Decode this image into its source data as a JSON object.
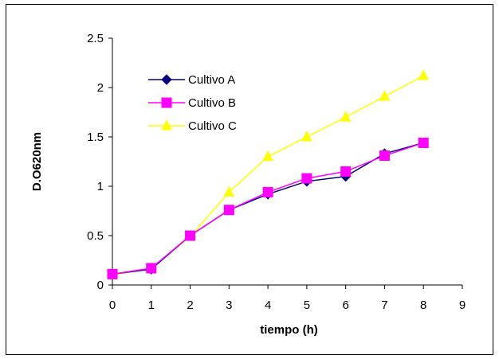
{
  "chart_data": {
    "type": "line",
    "title": "",
    "xlabel": "tiempo (h)",
    "ylabel": "D.O620nm",
    "xlim": [
      0,
      9
    ],
    "ylim": [
      0,
      2.5
    ],
    "x_ticks": [
      "0",
      "1",
      "2",
      "3",
      "4",
      "5",
      "6",
      "7",
      "8",
      "9"
    ],
    "y_ticks": [
      "0",
      "0.5",
      "1",
      "1.5",
      "2",
      "2.5"
    ],
    "grid": false,
    "legend_position": "top-left",
    "x": [
      0,
      1,
      2,
      3,
      4,
      5,
      6,
      7,
      8
    ],
    "series": [
      {
        "name": "Cultivo A",
        "color": "#000080",
        "marker": "diamond",
        "values": [
          0.11,
          0.16,
          0.5,
          0.76,
          0.92,
          1.05,
          1.1,
          1.33,
          1.44
        ]
      },
      {
        "name": "Cultivo B",
        "color": "#FF00FF",
        "marker": "square",
        "values": [
          0.11,
          0.17,
          0.5,
          0.76,
          0.94,
          1.08,
          1.15,
          1.31,
          1.44
        ]
      },
      {
        "name": "Cultivo C",
        "color": "#FFFF00",
        "marker": "triangle",
        "values": [
          0.1,
          0.17,
          0.49,
          0.94,
          1.3,
          1.5,
          1.7,
          1.91,
          2.12
        ]
      }
    ]
  }
}
